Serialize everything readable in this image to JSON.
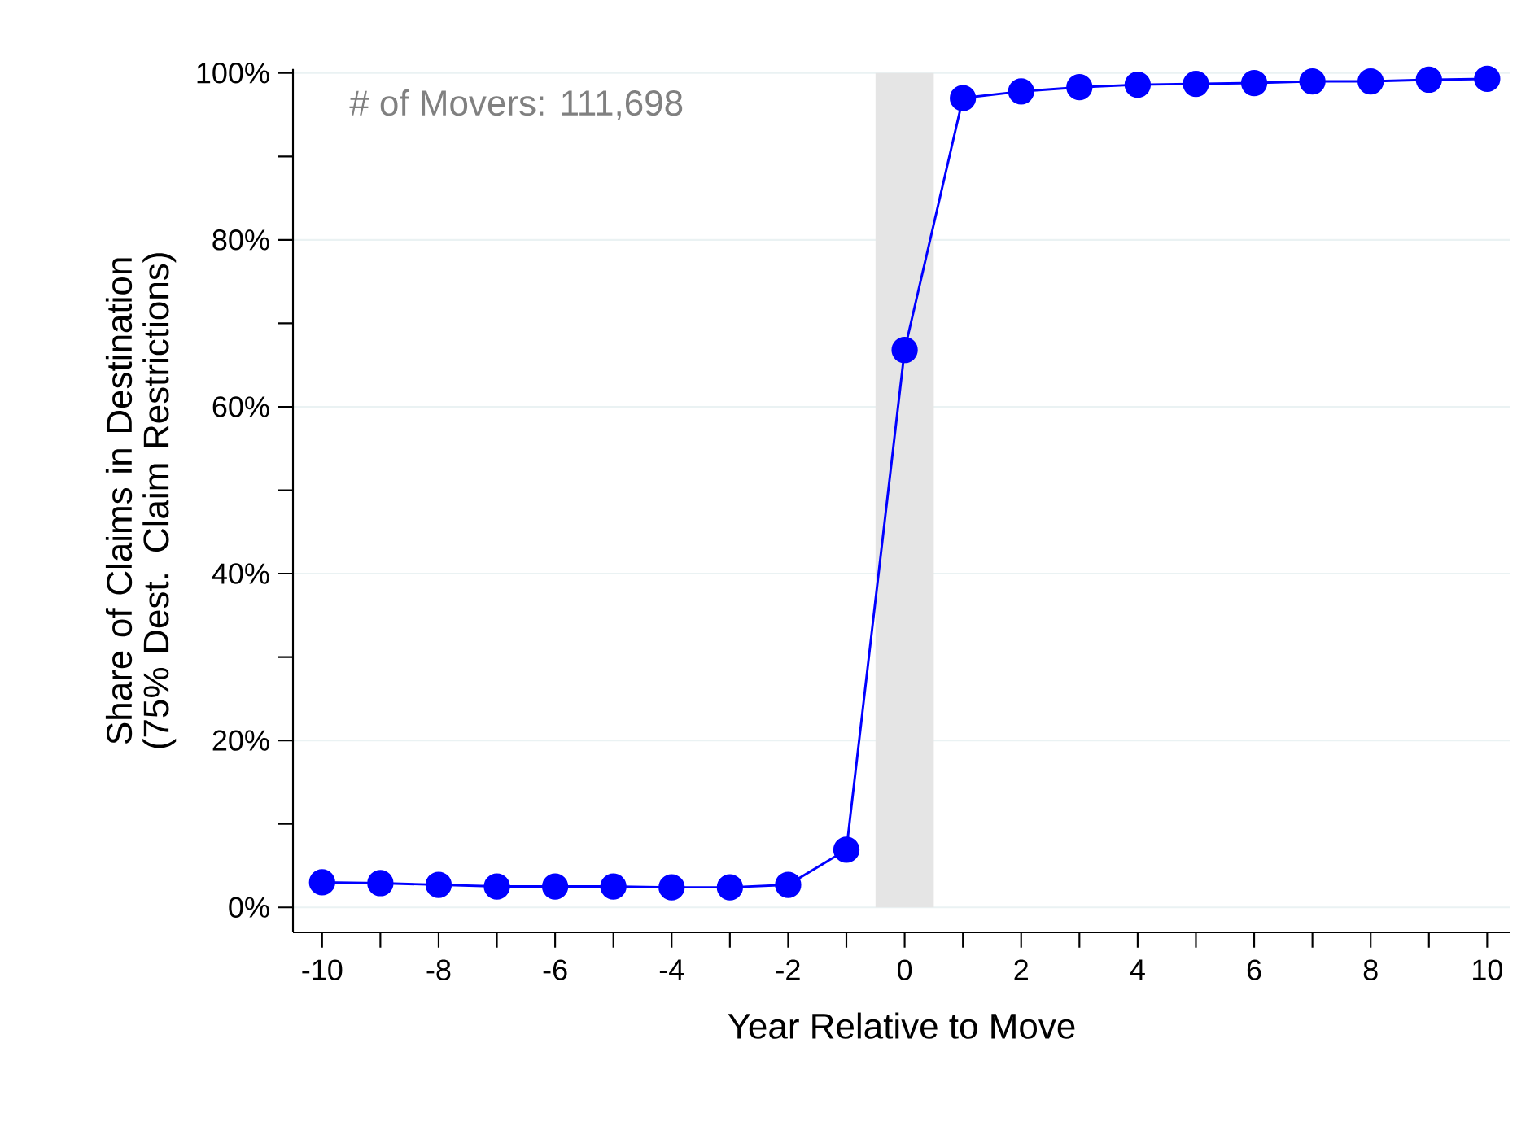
{
  "chart_data": {
    "type": "line",
    "xlabel": "Year Relative to Move",
    "ylabel": "Share of Claims in Destination (75% Dest. Claim Restrictions)",
    "x": [
      -10,
      -9,
      -8,
      -7,
      -6,
      -5,
      -4,
      -3,
      -2,
      -1,
      0,
      1,
      2,
      3,
      4,
      5,
      6,
      7,
      8,
      9,
      10
    ],
    "series": [
      {
        "color": "#0000ff",
        "values": [
          3.0,
          2.9,
          2.7,
          2.5,
          2.5,
          2.5,
          2.4,
          2.4,
          2.7,
          6.9,
          66.8,
          97.0,
          97.8,
          98.3,
          98.6,
          98.7,
          98.8,
          99.0,
          99.0,
          99.2,
          99.3
        ]
      }
    ],
    "marker": "circle",
    "line_style": "solid",
    "grid": "y",
    "xlim": [
      -10.5,
      10.4
    ],
    "ylim": [
      -3,
      100.5
    ],
    "xticks": [
      -10,
      {
        "value": -9,
        "label": null
      },
      -8,
      {
        "value": -7,
        "label": null
      },
      -6,
      {
        "value": -5,
        "label": null
      },
      -4,
      {
        "value": -3,
        "label": null
      },
      -2,
      {
        "value": -1,
        "label": null
      },
      0,
      {
        "value": 1,
        "label": null
      },
      2,
      {
        "value": 3,
        "label": null
      },
      4,
      {
        "value": 5,
        "label": null
      },
      6,
      {
        "value": 7,
        "label": null
      },
      8,
      {
        "value": 9,
        "label": null
      },
      10
    ],
    "yticks": [
      {
        "value": 0,
        "label": "0%"
      },
      {
        "value": 10,
        "label": null
      },
      {
        "value": 20,
        "label": "20%"
      },
      {
        "value": 30,
        "label": null
      },
      {
        "value": 40,
        "label": "40%"
      },
      {
        "value": 50,
        "label": null
      },
      {
        "value": 60,
        "label": "60%"
      },
      {
        "value": 70,
        "label": null
      },
      {
        "value": 80,
        "label": "80%"
      },
      {
        "value": 90,
        "label": null
      },
      {
        "value": 100,
        "label": "100%"
      }
    ],
    "bands": [
      {
        "axis": "x",
        "from": -0.5,
        "to": 0.5,
        "color": "#e5e5e5"
      }
    ],
    "annotations": [
      "# of Movers:  111,698"
    ]
  }
}
